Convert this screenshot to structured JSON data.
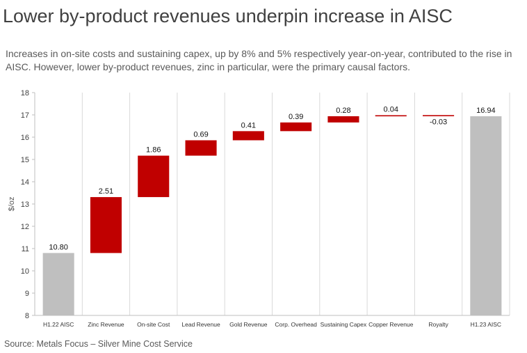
{
  "header": {
    "title": "Lower by-product revenues underpin increase in AISC",
    "subtitle": "Increases in on-site costs and sustaining capex, up by 8% and 5% respectively year-on-year, contributed to the rise in AISC. However, lower by-product revenues, zinc in particular, were the primary causal factors."
  },
  "footer": {
    "source": "Source: Metals Focus – Silver Mine Cost Service"
  },
  "colors": {
    "total_bar": "#bfbfbf",
    "change_bar": "#c00000",
    "grid": "#d9d9d9",
    "axis": "#bfbfbf"
  },
  "chart_data": {
    "type": "waterfall",
    "title": "",
    "xlabel": "",
    "ylabel": "$/oz",
    "ylim": [
      8,
      18
    ],
    "yticks": [
      8,
      9,
      10,
      11,
      12,
      13,
      14,
      15,
      16,
      17,
      18
    ],
    "categories": [
      "H1.22 AISC",
      "Zinc Revenue",
      "On-site Cost",
      "Lead Revenue",
      "Gold Revenue",
      "Corp. Overhead",
      "Sustaining Capex",
      "Copper Revenue",
      "Royalty",
      "H1.23 AISC"
    ],
    "values": [
      10.8,
      2.51,
      1.86,
      0.69,
      0.41,
      0.39,
      0.28,
      0.04,
      -0.03,
      16.94
    ],
    "labels": [
      "10.80",
      "2.51",
      "1.86",
      "0.69",
      "0.41",
      "0.39",
      "0.28",
      "0.04",
      "-0.03",
      "16.94"
    ],
    "kinds": [
      "total",
      "change",
      "change",
      "change",
      "change",
      "change",
      "change",
      "change",
      "change",
      "total"
    ]
  }
}
